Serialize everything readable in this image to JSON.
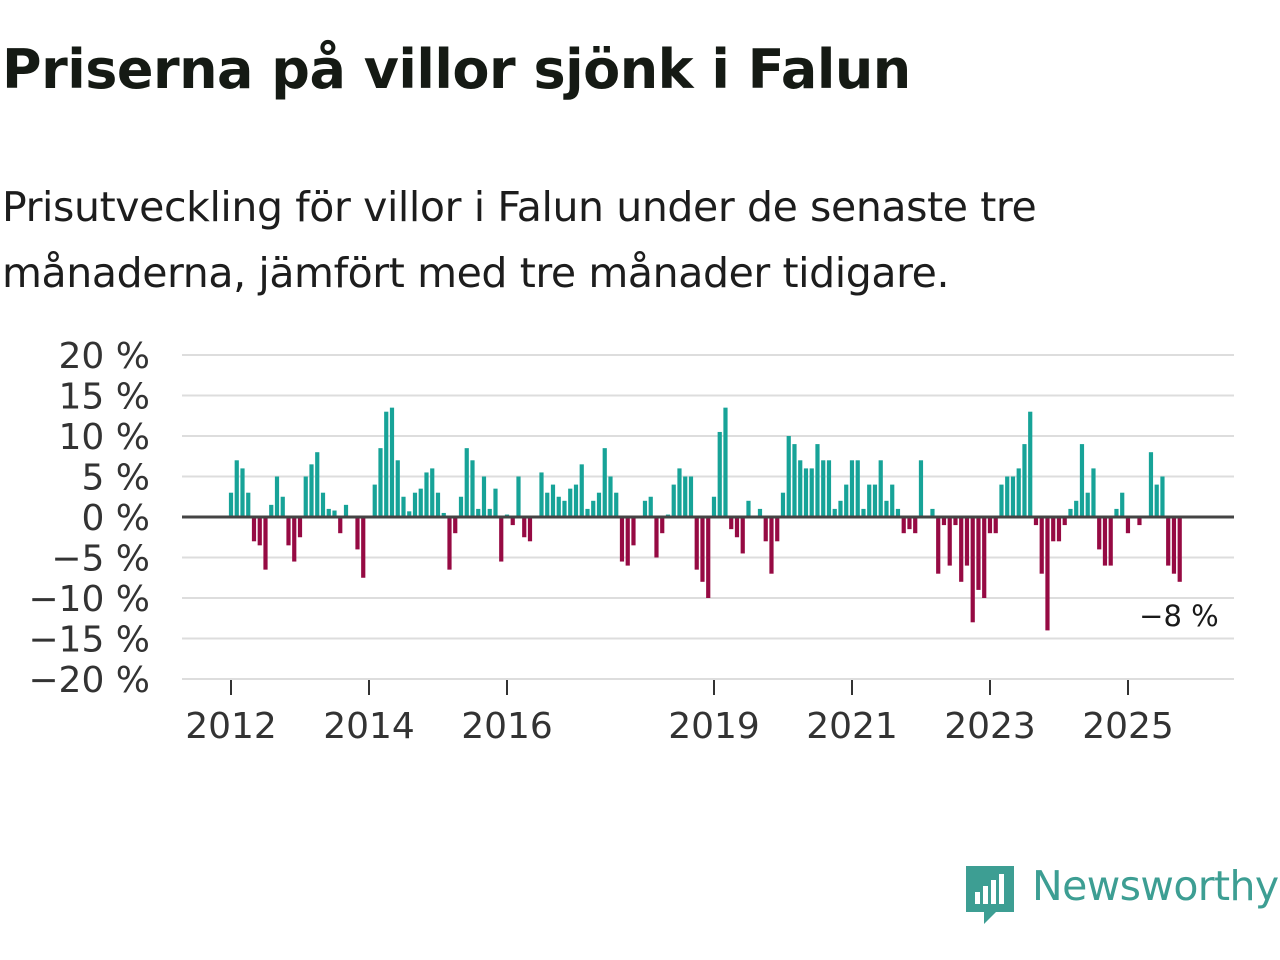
{
  "header": {
    "title": "Priserna på villor sjönk i Falun",
    "subtitle": "Prisutveckling för villor i Falun under de senaste tre månaderna, jämfört med tre månader tidigare."
  },
  "branding": {
    "name": "Newsworthy",
    "icon": "bar-chart-speech-icon",
    "color": "#3d9e93"
  },
  "colors": {
    "positive": "#17a398",
    "negative": "#960a43",
    "zero_line": "#444444",
    "grid": "#dddddd",
    "text": "#333333"
  },
  "chart_data": {
    "type": "bar",
    "title": "Priserna på villor sjönk i Falun",
    "xlabel": "",
    "ylabel": "",
    "ylim": [
      -20,
      20
    ],
    "yticks": [
      20,
      15,
      10,
      5,
      0,
      -5,
      -10,
      -15,
      -20
    ],
    "ytick_labels": [
      "20 %",
      "15 %",
      "10 %",
      "5 %",
      "0 %",
      "−5 %",
      "−10 %",
      "−15 %",
      "−20 %"
    ],
    "xtick_labels": [
      "2012",
      "2014",
      "2016",
      "2019",
      "2021",
      "2023",
      "2025"
    ],
    "xtick_positions": [
      2012.0,
      2014.0,
      2016.0,
      2019.0,
      2021.0,
      2023.0,
      2025.0
    ],
    "x_start": 2012.0,
    "x_step": 0.08333,
    "values": [
      3,
      7,
      6,
      3,
      -3,
      -3.5,
      -6.5,
      1.5,
      5,
      2.5,
      -3.5,
      -5.5,
      -2.5,
      5,
      6.5,
      8,
      3,
      1,
      0.8,
      -2,
      1.5,
      0,
      -4,
      -7.5,
      0,
      4,
      8.5,
      13,
      13.5,
      7,
      2.5,
      0.7,
      3,
      3.5,
      5.5,
      6,
      3,
      0.5,
      -6.5,
      -2,
      2.5,
      8.5,
      7,
      1,
      5,
      1,
      3.5,
      -5.5,
      0.3,
      -1,
      5,
      -2.5,
      -3,
      0,
      5.5,
      3,
      4,
      2.5,
      2,
      3.5,
      4,
      6.5,
      1,
      2,
      3,
      8.5,
      5,
      3,
      -5.5,
      -6,
      -3.5,
      0,
      2,
      2.5,
      -5,
      -2,
      0.3,
      4,
      6,
      5,
      5,
      -6.5,
      -8,
      -10,
      2.5,
      10.5,
      13.5,
      -1.5,
      -2.5,
      -4.5,
      2,
      0,
      1,
      -3,
      -7,
      -3,
      3,
      10,
      9,
      7,
      6,
      6,
      9,
      7,
      7,
      1,
      2,
      4,
      7,
      7,
      1,
      4,
      4,
      7,
      2,
      4,
      1,
      -2,
      -1.5,
      -2,
      7,
      0,
      1,
      -7,
      -1,
      -6,
      -1,
      -8,
      -6,
      -13,
      -9,
      -10,
      -2,
      -2,
      4,
      5,
      5,
      6,
      9,
      13,
      -1,
      -7,
      -14,
      -3,
      -3,
      -1,
      1,
      2,
      9,
      3,
      6,
      -4,
      -6,
      -6,
      1,
      3,
      -2,
      0,
      -1,
      0,
      8,
      4,
      5,
      -6,
      -7,
      -8
    ],
    "annotation": "−8 %"
  }
}
